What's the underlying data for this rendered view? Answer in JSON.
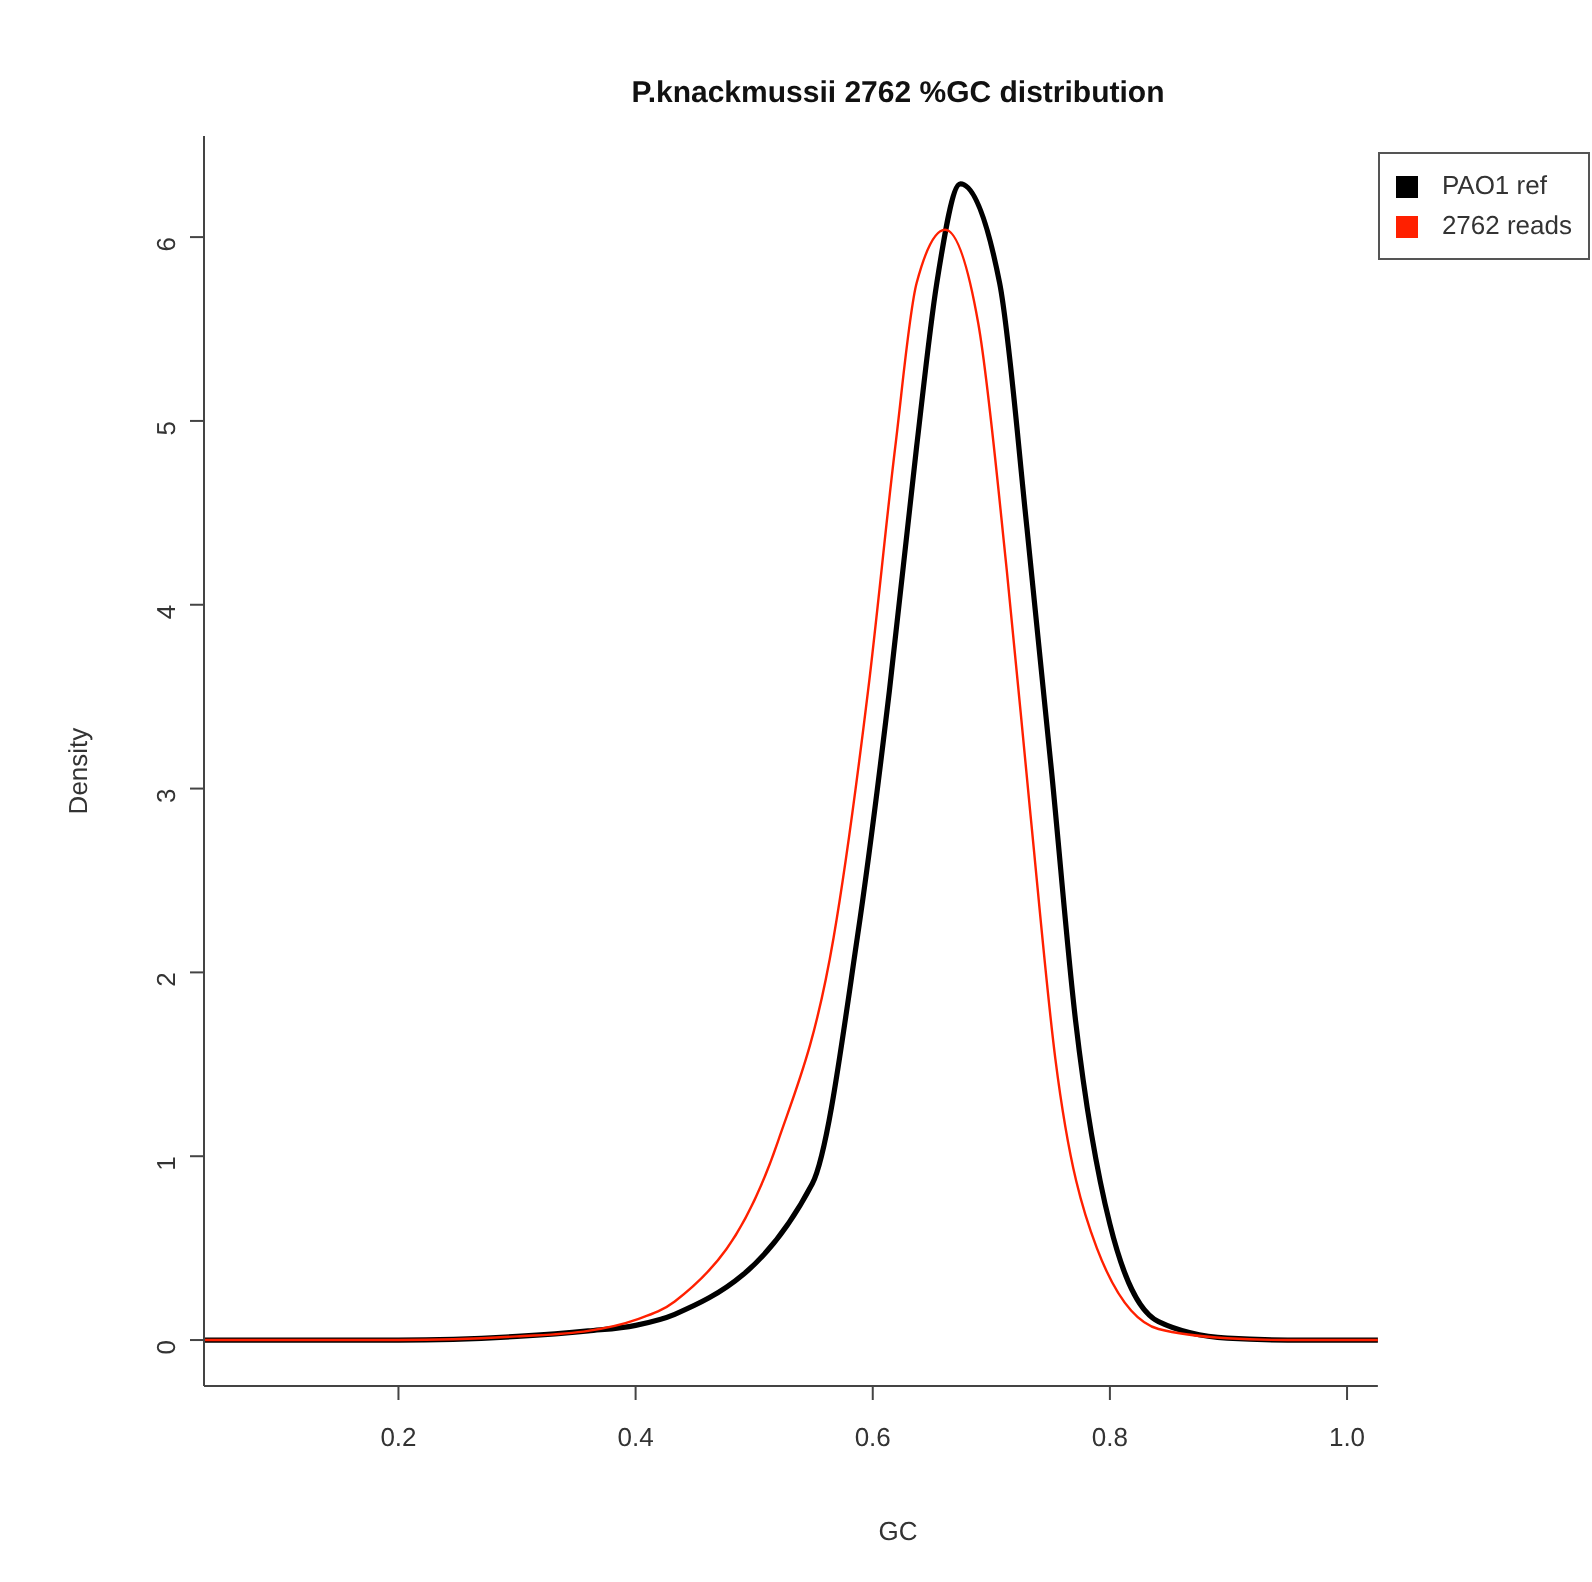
{
  "chart_data": {
    "type": "line",
    "title": "P.knackmussii 2762 %GC distribution",
    "xlabel": "GC",
    "ylabel": "Density",
    "xlim": [
      0.036,
      1.026
    ],
    "xticks": [
      {
        "value": 0.2,
        "label": "0.2"
      },
      {
        "value": 0.4,
        "label": "0.4"
      },
      {
        "value": 0.6,
        "label": "0.6"
      },
      {
        "value": 0.8,
        "label": "0.8"
      },
      {
        "value": 1.0,
        "label": "1.0"
      }
    ],
    "ylim": [
      -0.25,
      6.55
    ],
    "yticks": [
      0,
      1,
      2,
      3,
      4,
      5,
      6
    ],
    "grid": false,
    "legend": "top right",
    "marker": "none",
    "line_style": "solid",
    "series": [
      {
        "name": "PAO1 ref",
        "color": "#000000",
        "x": [
          0.036,
          0.2,
          0.3,
          0.36,
          0.4,
          0.433,
          0.549,
          0.587,
          0.614,
          0.637,
          0.654,
          0.674,
          0.707,
          0.73,
          0.751,
          0.771,
          0.8,
          0.841,
          0.899,
          0.95,
          1.026
        ],
        "values": [
          0,
          0,
          0.02,
          0.05,
          0.08,
          0.14,
          0.85,
          2.19,
          3.53,
          4.86,
          5.75,
          6.29,
          5.75,
          4.42,
          3.08,
          1.74,
          0.63,
          0.1,
          0.01,
          0,
          0
        ]
      },
      {
        "name": "2762 reads",
        "color": "#ff2000",
        "x": [
          0.036,
          0.2,
          0.3,
          0.36,
          0.4,
          0.433,
          0.52,
          0.567,
          0.596,
          0.619,
          0.637,
          0.661,
          0.689,
          0.713,
          0.733,
          0.754,
          0.789,
          0.841,
          0.899,
          0.95,
          1.026
        ],
        "values": [
          0,
          0,
          0.02,
          0.05,
          0.11,
          0.21,
          1.08,
          2.19,
          3.53,
          4.86,
          5.75,
          6.04,
          5.53,
          4.19,
          2.86,
          1.53,
          0.5,
          0.06,
          0.01,
          0,
          0
        ]
      }
    ]
  }
}
